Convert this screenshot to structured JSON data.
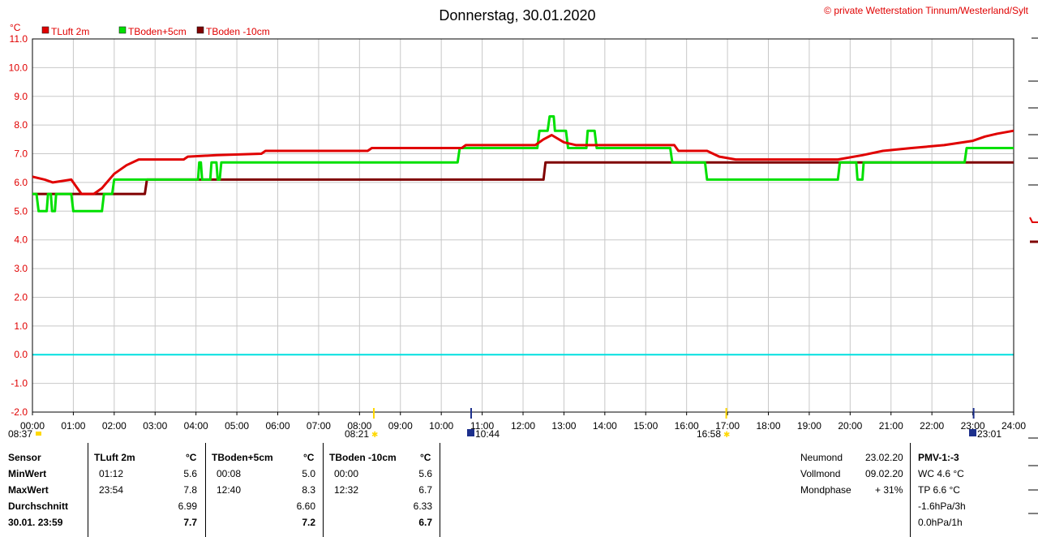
{
  "chart_data": {
    "type": "line",
    "title": "Donnerstag, 30.01.2020",
    "copyright": "© private Wetterstation Tinnum/Westerland/Sylt",
    "y_unit": "°C",
    "ylim": [
      -2.0,
      11.0
    ],
    "xlim": [
      0,
      24
    ],
    "y_ticks": [
      "-2.0",
      "-1.0",
      "0.0",
      "1.0",
      "2.0",
      "3.0",
      "4.0",
      "5.0",
      "6.0",
      "7.0",
      "8.0",
      "9.0",
      "10.0",
      "11.0"
    ],
    "x_ticks": [
      "00:00",
      "01:00",
      "02:00",
      "03:00",
      "04:00",
      "05:00",
      "06:00",
      "07:00",
      "08:00",
      "09:00",
      "10:00",
      "11:00",
      "12:00",
      "13:00",
      "14:00",
      "15:00",
      "16:00",
      "17:00",
      "18:00",
      "19:00",
      "20:00",
      "21:00",
      "22:00",
      "23:00",
      "24:00"
    ],
    "grid": true,
    "legend_position": "top-left",
    "reference_line": {
      "value": 0.0,
      "color": "#00e0e0"
    },
    "sun_moon": {
      "moonset": "08:37",
      "sunrise": "08:21",
      "moonrise": "10:44",
      "sunset": "16:58",
      "moon_marker": "23:01",
      "sunrise_hour": 8.35,
      "moonrise_hour": 10.73,
      "sunset_hour": 16.97,
      "moon_marker_hour": 23.02
    },
    "series": [
      {
        "name": "TLuft 2m",
        "color": "#e00000",
        "points": [
          [
            0,
            6.2
          ],
          [
            0.3,
            6.1
          ],
          [
            0.5,
            6.0
          ],
          [
            0.95,
            6.1
          ],
          [
            1.05,
            5.9
          ],
          [
            1.2,
            5.6
          ],
          [
            1.5,
            5.6
          ],
          [
            1.7,
            5.8
          ],
          [
            2.0,
            6.3
          ],
          [
            2.3,
            6.6
          ],
          [
            2.6,
            6.8
          ],
          [
            3.0,
            6.8
          ],
          [
            3.7,
            6.8
          ],
          [
            3.8,
            6.9
          ],
          [
            4.5,
            6.95
          ],
          [
            5.6,
            7.0
          ],
          [
            5.7,
            7.1
          ],
          [
            8.2,
            7.1
          ],
          [
            8.3,
            7.2
          ],
          [
            9.5,
            7.2
          ],
          [
            10.5,
            7.2
          ],
          [
            10.6,
            7.3
          ],
          [
            12.3,
            7.3
          ],
          [
            12.5,
            7.5
          ],
          [
            12.7,
            7.65
          ],
          [
            13.0,
            7.4
          ],
          [
            13.3,
            7.3
          ],
          [
            14.0,
            7.3
          ],
          [
            15.7,
            7.3
          ],
          [
            15.8,
            7.1
          ],
          [
            16.5,
            7.1
          ],
          [
            16.8,
            6.9
          ],
          [
            17.2,
            6.8
          ],
          [
            19.0,
            6.8
          ],
          [
            19.7,
            6.8
          ],
          [
            20.3,
            6.95
          ],
          [
            20.8,
            7.1
          ],
          [
            21.5,
            7.2
          ],
          [
            22.3,
            7.3
          ],
          [
            23.0,
            7.45
          ],
          [
            23.3,
            7.6
          ],
          [
            23.6,
            7.7
          ],
          [
            24.0,
            7.8
          ]
        ]
      },
      {
        "name": "TBoden+5cm",
        "color": "#00e000",
        "points": [
          [
            0,
            5.6
          ],
          [
            0.1,
            5.6
          ],
          [
            0.15,
            5.0
          ],
          [
            0.35,
            5.0
          ],
          [
            0.38,
            5.6
          ],
          [
            0.45,
            5.6
          ],
          [
            0.48,
            5.0
          ],
          [
            0.55,
            5.0
          ],
          [
            0.58,
            5.6
          ],
          [
            0.95,
            5.6
          ],
          [
            1.0,
            5.0
          ],
          [
            1.7,
            5.0
          ],
          [
            1.75,
            5.6
          ],
          [
            1.95,
            5.6
          ],
          [
            2.0,
            6.1
          ],
          [
            2.7,
            6.1
          ],
          [
            2.75,
            6.1
          ],
          [
            4.05,
            6.1
          ],
          [
            4.08,
            6.7
          ],
          [
            4.12,
            6.7
          ],
          [
            4.15,
            6.1
          ],
          [
            4.35,
            6.1
          ],
          [
            4.38,
            6.7
          ],
          [
            4.5,
            6.7
          ],
          [
            4.53,
            6.1
          ],
          [
            4.58,
            6.1
          ],
          [
            4.62,
            6.7
          ],
          [
            10.4,
            6.7
          ],
          [
            10.45,
            7.2
          ],
          [
            12.35,
            7.2
          ],
          [
            12.4,
            7.8
          ],
          [
            12.6,
            7.8
          ],
          [
            12.65,
            8.3
          ],
          [
            12.75,
            8.3
          ],
          [
            12.78,
            7.8
          ],
          [
            13.05,
            7.8
          ],
          [
            13.1,
            7.2
          ],
          [
            13.55,
            7.2
          ],
          [
            13.58,
            7.8
          ],
          [
            13.75,
            7.8
          ],
          [
            13.8,
            7.2
          ],
          [
            15.6,
            7.2
          ],
          [
            15.65,
            6.7
          ],
          [
            16.45,
            6.7
          ],
          [
            16.5,
            6.1
          ],
          [
            19.7,
            6.1
          ],
          [
            19.75,
            6.7
          ],
          [
            20.15,
            6.7
          ],
          [
            20.18,
            6.1
          ],
          [
            20.3,
            6.1
          ],
          [
            20.33,
            6.7
          ],
          [
            22.8,
            6.7
          ],
          [
            22.85,
            7.2
          ],
          [
            24.0,
            7.2
          ]
        ]
      },
      {
        "name": "TBoden -10cm",
        "color": "#800000",
        "points": [
          [
            0,
            5.6
          ],
          [
            2.75,
            5.6
          ],
          [
            2.8,
            6.1
          ],
          [
            12.5,
            6.1
          ],
          [
            12.55,
            6.7
          ],
          [
            24.0,
            6.7
          ]
        ]
      }
    ]
  },
  "stats": {
    "header": {
      "sensor": "Sensor",
      "s1": "TLuft 2m",
      "s2": "TBoden+5cm",
      "s3": "TBoden -10cm",
      "unit": "°C"
    },
    "rows": [
      {
        "label": "MinWert",
        "t1": "01:12",
        "v1": "5.6",
        "t2": "00:08",
        "v2": "5.0",
        "t3": "00:00",
        "v3": "5.6"
      },
      {
        "label": "MaxWert",
        "t1": "23:54",
        "v1": "7.8",
        "t2": "12:40",
        "v2": "8.3",
        "t3": "12:32",
        "v3": "6.7"
      },
      {
        "label": "Durchschnitt",
        "t1": "",
        "v1": "6.99",
        "t2": "",
        "v2": "6.60",
        "t3": "",
        "v3": "6.33"
      },
      {
        "label": "30.01. 23:59",
        "t1": "",
        "v1": "7.7",
        "t2": "",
        "v2": "7.2",
        "t3": "",
        "v3": "6.7"
      }
    ]
  },
  "moon": {
    "neumond_label": "Neumond",
    "neumond_value": "23.02.20",
    "vollmond_label": "Vollmond",
    "vollmond_value": "09.02.20",
    "mondphase_label": "Mondphase",
    "mondphase_value": "+ 31%"
  },
  "pmv": {
    "title": "PMV-1:-3",
    "wc": "WC 4.6 °C",
    "tp": "TP 6.6 °C",
    "p3h": "-1.6hPa/3h",
    "p1h": "0.0hPa/1h"
  }
}
